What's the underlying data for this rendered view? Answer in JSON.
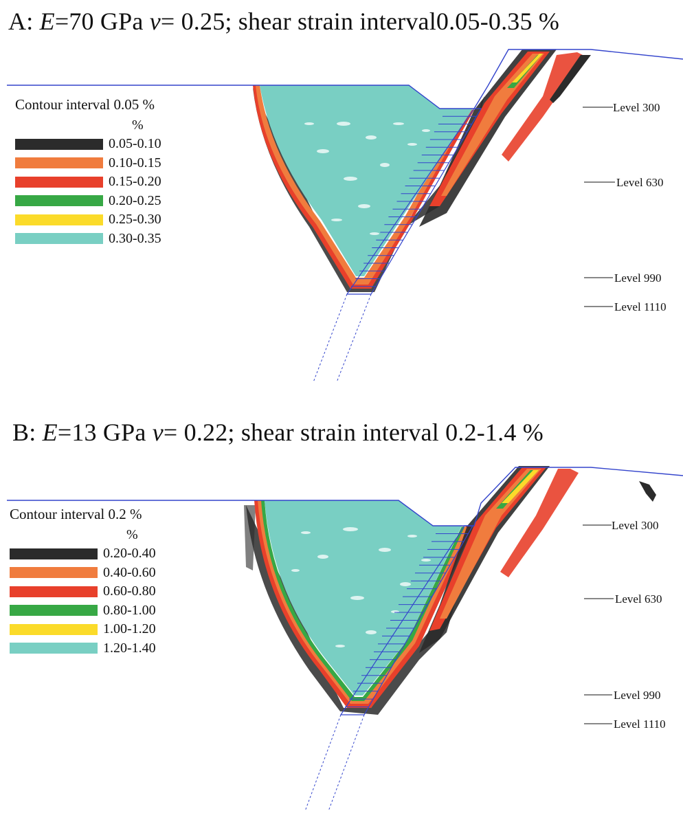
{
  "panels": [
    {
      "title_prefix": "A: ",
      "title_e_symbol": "E",
      "title_e_value": "=70 GPa ",
      "title_nu_symbol": "ν",
      "title_rest": "= 0.25; shear strain interval",
      "title_interval": "0.05-0.35 %",
      "legend_title": "Contour interval 0.05 %",
      "legend_unit": "%",
      "legend": [
        {
          "label": "0.05-0.10",
          "color": "#2b2b2b"
        },
        {
          "label": "0.10-0.15",
          "color": "#f07c3e"
        },
        {
          "label": "0.15-0.20",
          "color": "#e8402b"
        },
        {
          "label": "0.20-0.25",
          "color": "#37a845"
        },
        {
          "label": "0.25-0.30",
          "color": "#fbdb2a"
        },
        {
          "label": "0.30-0.35",
          "color": "#79cfc3"
        }
      ],
      "levels": [
        "Level 300",
        "Level 630",
        "Level 990",
        "Level 1110"
      ]
    },
    {
      "title_prefix": "B: ",
      "title_e_symbol": "E",
      "title_e_value": "=13 GPa ",
      "title_nu_symbol": "ν",
      "title_rest": "= 0.22; shear strain interval ",
      "title_interval": "0.2-1.4 %",
      "legend_title": "Contour interval 0.2 %",
      "legend_unit": "%",
      "legend": [
        {
          "label": "0.20-0.40",
          "color": "#2b2b2b"
        },
        {
          "label": "0.40-0.60",
          "color": "#f07c3e"
        },
        {
          "label": "0.60-0.80",
          "color": "#e8402b"
        },
        {
          "label": "0.80-1.00",
          "color": "#37a845"
        },
        {
          "label": "1.00-1.20",
          "color": "#fbdb2a"
        },
        {
          "label": "1.20-1.40",
          "color": "#79cfc3"
        }
      ],
      "levels": [
        "Level 300",
        "Level 630",
        "Level 990",
        "Level 1110"
      ]
    }
  ],
  "colors": {
    "outline": "#3344cc",
    "fill": "#79cfc3",
    "black": "#2b2b2b",
    "orange": "#f07c3e",
    "red": "#e8402b",
    "green": "#37a845",
    "yellow": "#fbdb2a"
  }
}
